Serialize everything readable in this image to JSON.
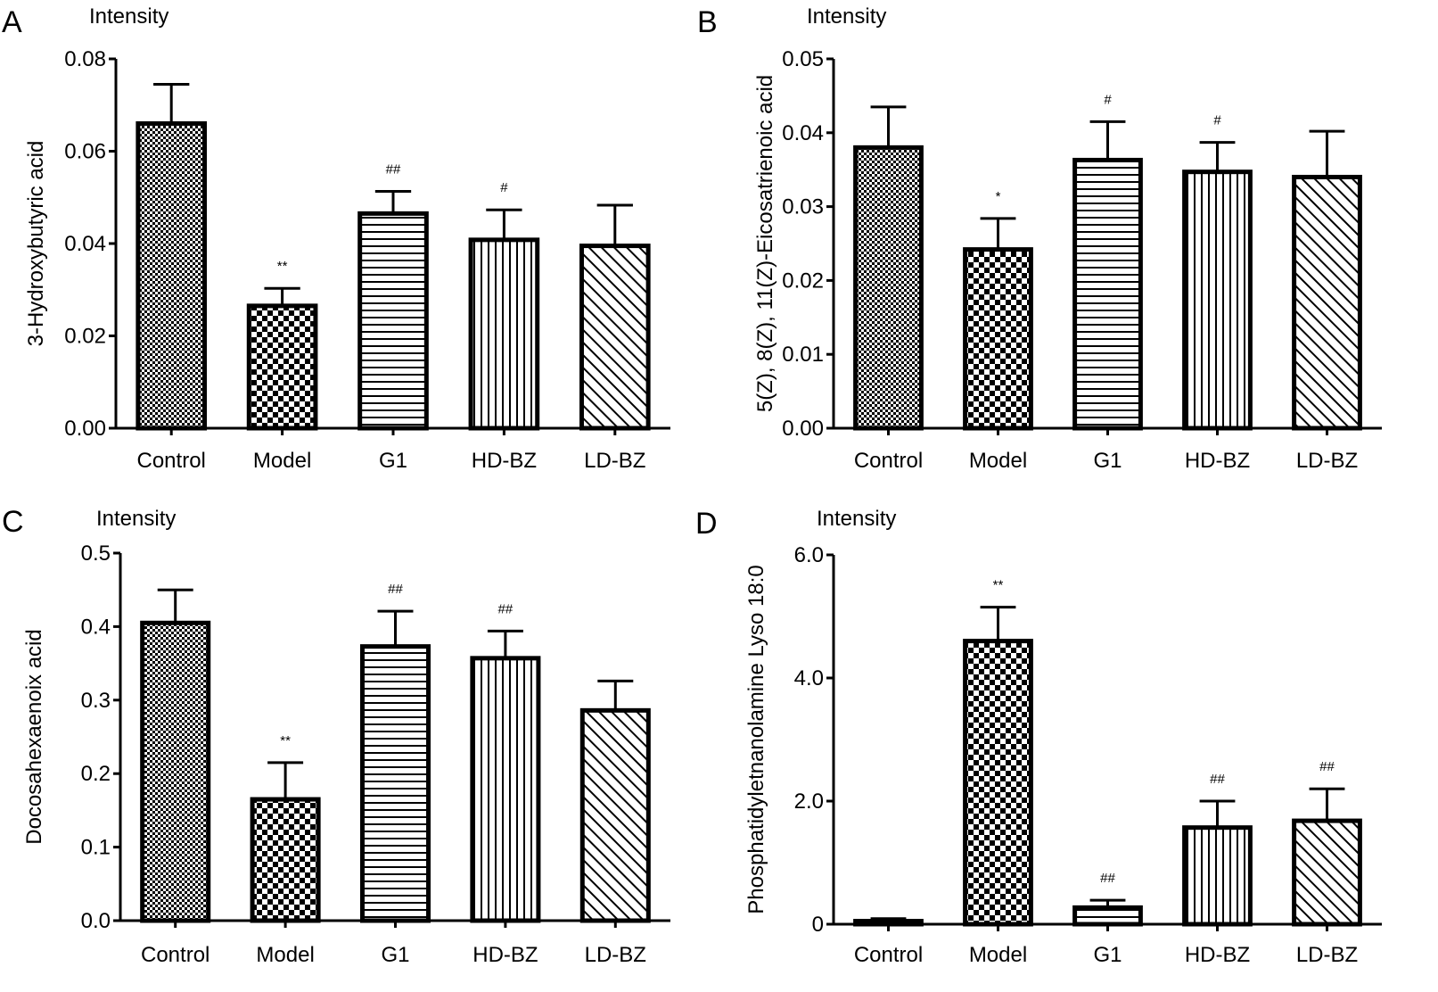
{
  "chart_data": [
    {
      "type": "bar",
      "panel": "A",
      "header": "Intensity",
      "ylabel": "3-Hydroxybutyric acid",
      "xlabel": "",
      "categories": [
        "Control",
        "Model",
        "G1",
        "HD-BZ",
        "LD-BZ"
      ],
      "values": [
        0.066,
        0.0265,
        0.0465,
        0.0408,
        0.0395
      ],
      "errors": [
        0.0085,
        0.0038,
        0.0048,
        0.0065,
        0.0088
      ],
      "significance": [
        "",
        "**",
        "##",
        "#",
        ""
      ],
      "ylim": [
        0,
        0.08
      ],
      "yticks": [
        0,
        0.02,
        0.04,
        0.06,
        0.08
      ],
      "ytick_labels": [
        "0.00",
        "0.02",
        "0.04",
        "0.06",
        "0.08"
      ]
    },
    {
      "type": "bar",
      "panel": "B",
      "header": "Intensity",
      "ylabel": "5(Z), 8(Z), 11(Z)-Eicosatrienoic acid",
      "xlabel": "",
      "categories": [
        "Control",
        "Model",
        "G1",
        "HD-BZ",
        "LD-BZ"
      ],
      "values": [
        0.038,
        0.0242,
        0.0363,
        0.0347,
        0.034
      ],
      "errors": [
        0.0055,
        0.0042,
        0.0052,
        0.004,
        0.0062
      ],
      "significance": [
        "",
        "*",
        "#",
        "#",
        ""
      ],
      "ylim": [
        0,
        0.05
      ],
      "yticks": [
        0,
        0.01,
        0.02,
        0.03,
        0.04,
        0.05
      ],
      "ytick_labels": [
        "0.00",
        "0.01",
        "0.02",
        "0.03",
        "0.04",
        "0.05"
      ]
    },
    {
      "type": "bar",
      "panel": "C",
      "header": "Intensity",
      "ylabel": "Docosahexaenoix acid",
      "xlabel": "",
      "categories": [
        "Control",
        "Model",
        "G1",
        "HD-BZ",
        "LD-BZ"
      ],
      "values": [
        0.405,
        0.165,
        0.373,
        0.357,
        0.286
      ],
      "errors": [
        0.045,
        0.05,
        0.048,
        0.037,
        0.04
      ],
      "significance": [
        "",
        "**",
        "##",
        "##",
        ""
      ],
      "ylim": [
        0,
        0.5
      ],
      "yticks": [
        0,
        0.1,
        0.2,
        0.3,
        0.4,
        0.5
      ],
      "ytick_labels": [
        "0.0",
        "0.1",
        "0.2",
        "0.3",
        "0.4",
        "0.5"
      ]
    },
    {
      "type": "bar",
      "panel": "D",
      "header": "Intensity",
      "ylabel": "Phosphatidyletnanolamine Lyso 18:0",
      "xlabel": "",
      "categories": [
        "Control",
        "Model",
        "G1",
        "HD-BZ",
        "LD-BZ"
      ],
      "values": [
        0.05,
        4.6,
        0.27,
        1.57,
        1.68
      ],
      "errors": [
        0.04,
        0.55,
        0.12,
        0.43,
        0.52
      ],
      "significance": [
        "",
        "**",
        "##",
        "##",
        "##"
      ],
      "ylim": [
        0,
        6
      ],
      "yticks": [
        0,
        2,
        4,
        6
      ],
      "ytick_labels": [
        "0",
        "2.0",
        "4.0",
        "6.0"
      ]
    }
  ],
  "pattern_names": [
    "fine-checker",
    "coarse-checker",
    "horizontal-stripes",
    "vertical-stripes",
    "diagonal-stripes"
  ],
  "colors": {
    "ink": "#000000",
    "background": "#ffffff"
  }
}
